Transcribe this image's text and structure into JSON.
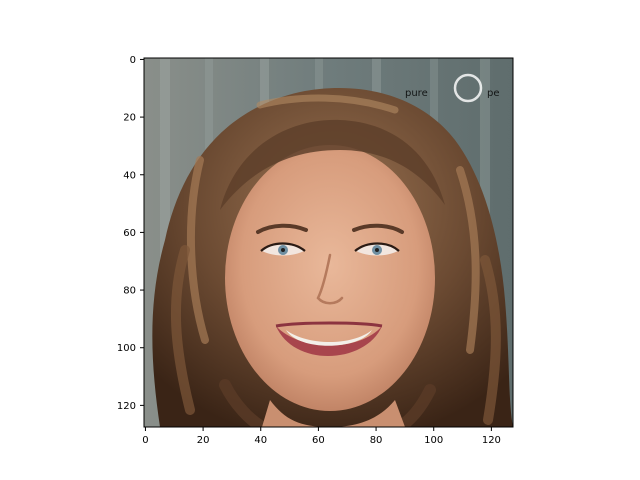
{
  "figure": {
    "image_subject": "portrait photo of a smiling woman with long wavy brown hair",
    "watermark": "pure",
    "watermark_tail": "pe",
    "colors": {
      "background": "#6f7c7c",
      "hair_dark": "#3a2416",
      "hair_mid": "#6b4a32",
      "hair_light": "#9a7352",
      "skin": "#d79c7c",
      "skin_light": "#e9b89a",
      "lips": "#a8454d",
      "teeth": "#f3efe9"
    }
  },
  "chart_data": {
    "type": "image",
    "title": "",
    "xlabel": "",
    "ylabel": "",
    "xlim": [
      0,
      127
    ],
    "ylim": [
      127,
      0
    ],
    "xticks": [
      0,
      20,
      40,
      60,
      80,
      100,
      120
    ],
    "yticks": [
      0,
      20,
      40,
      60,
      80,
      100,
      120
    ],
    "xtick_labels": [
      "0",
      "20",
      "40",
      "60",
      "80",
      "100",
      "120"
    ],
    "ytick_labels": [
      "0",
      "20",
      "40",
      "60",
      "80",
      "100",
      "120"
    ],
    "grid": false
  }
}
